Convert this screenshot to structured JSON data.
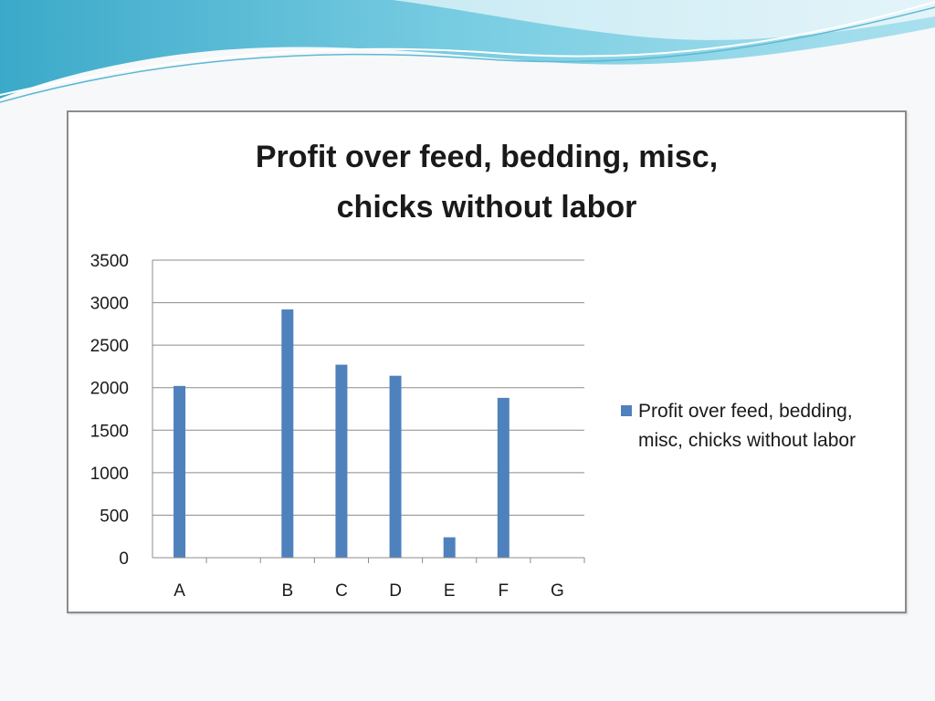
{
  "colors": {
    "bar": "#4f81bd",
    "gridline": "#8c8c8c",
    "frame": "#8c8c8c",
    "header_wave": "#7ecbe0"
  },
  "chart_data": {
    "type": "bar",
    "title_lines": [
      "Profit over feed, bedding, misc,",
      "chicks without labor"
    ],
    "categories": [
      "A",
      "",
      "B",
      "C",
      "D",
      "E",
      "F",
      "G"
    ],
    "series": [
      {
        "name": "Profit over feed, bedding, misc, chicks without labor",
        "legend_lines": [
          "Profit over feed, bedding,",
          "misc, chicks without labor"
        ],
        "values": [
          2020,
          null,
          2920,
          2270,
          2140,
          240,
          1880,
          null
        ]
      }
    ],
    "xlabel": "",
    "ylabel": "",
    "ylim": [
      0,
      3500
    ],
    "yticks": [
      0,
      500,
      1000,
      1500,
      2000,
      2500,
      3000,
      3500
    ],
    "grid": true,
    "legend_position": "right"
  }
}
